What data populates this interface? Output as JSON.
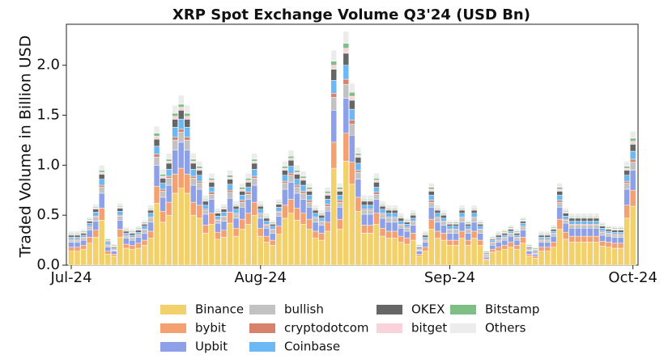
{
  "chart_data": {
    "type": "stacked_bar",
    "title": "XRP Spot Exchange Volume Q3'24 (USD Bn)",
    "y_label": "Traded Volume in Billion USD",
    "categories": [
      "Jul-24",
      null,
      null,
      null,
      null,
      null,
      null,
      null,
      null,
      null,
      null,
      null,
      null,
      null,
      null,
      null,
      null,
      null,
      null,
      null,
      null,
      null,
      null,
      null,
      null,
      null,
      null,
      null,
      null,
      null,
      null,
      "Aug-24",
      null,
      null,
      null,
      null,
      null,
      null,
      null,
      null,
      null,
      null,
      null,
      null,
      null,
      null,
      null,
      null,
      null,
      null,
      null,
      null,
      null,
      null,
      null,
      null,
      null,
      null,
      null,
      null,
      null,
      null,
      "Sep-24",
      null,
      null,
      null,
      null,
      null,
      null,
      null,
      null,
      null,
      null,
      null,
      null,
      null,
      null,
      null,
      null,
      null,
      null,
      null,
      null,
      null,
      null,
      null,
      null,
      null,
      null,
      null,
      null,
      null,
      "Oct-24"
    ],
    "ylim": [
      0,
      2.41
    ],
    "yticks": [
      {
        "value": 0,
        "label": "0.0"
      },
      0.5,
      {
        "value": 1,
        "label": "1.0"
      },
      1.5,
      {
        "value": 2,
        "label": "2.0"
      }
    ],
    "legend_position": "bottom",
    "series": [
      {
        "name": "Binance",
        "color": "#f2d06b",
        "values": [
          0.14,
          0.14,
          0.16,
          0.22,
          0.28,
          0.45,
          0.11,
          0.09,
          0.28,
          0.17,
          0.16,
          0.17,
          0.2,
          0.27,
          0.62,
          0.43,
          0.5,
          0.72,
          0.77,
          0.72,
          0.5,
          0.47,
          0.32,
          0.41,
          0.26,
          0.28,
          0.42,
          0.29,
          0.36,
          0.41,
          0.5,
          0.29,
          0.23,
          0.2,
          0.31,
          0.47,
          0.52,
          0.45,
          0.41,
          0.36,
          0.27,
          0.25,
          0.34,
          0.97,
          0.36,
          1.04,
          0.81,
          0.54,
          0.32,
          0.32,
          0.41,
          0.29,
          0.27,
          0.27,
          0.23,
          0.21,
          0.25,
          0.09,
          0.14,
          0.36,
          0.27,
          0.25,
          0.2,
          0.2,
          0.27,
          0.2,
          0.27,
          0.2,
          0.05,
          0.13,
          0.14,
          0.16,
          0.18,
          0.16,
          0.22,
          0.09,
          0.07,
          0.14,
          0.14,
          0.18,
          0.36,
          0.26,
          0.23,
          0.23,
          0.23,
          0.23,
          0.23,
          0.19,
          0.18,
          0.17,
          0.17,
          0.47,
          0.59
        ]
      },
      {
        "name": "bybit",
        "color": "#f4a070",
        "values": [
          0.04,
          0.04,
          0.04,
          0.06,
          0.07,
          0.12,
          0.03,
          0.02,
          0.08,
          0.04,
          0.04,
          0.05,
          0.05,
          0.07,
          0.17,
          0.11,
          0.13,
          0.19,
          0.2,
          0.19,
          0.13,
          0.13,
          0.08,
          0.11,
          0.07,
          0.07,
          0.11,
          0.08,
          0.1,
          0.11,
          0.13,
          0.08,
          0.06,
          0.05,
          0.08,
          0.13,
          0.14,
          0.12,
          0.11,
          0.1,
          0.07,
          0.07,
          0.09,
          0.26,
          0.1,
          0.28,
          0.22,
          0.14,
          0.08,
          0.08,
          0.11,
          0.08,
          0.07,
          0.07,
          0.06,
          0.06,
          0.07,
          0.02,
          0.04,
          0.1,
          0.07,
          0.07,
          0.05,
          0.05,
          0.07,
          0.05,
          0.07,
          0.05,
          0.01,
          0.03,
          0.04,
          0.04,
          0.05,
          0.04,
          0.06,
          0.02,
          0.02,
          0.04,
          0.04,
          0.05,
          0.1,
          0.07,
          0.06,
          0.06,
          0.06,
          0.06,
          0.06,
          0.05,
          0.05,
          0.05,
          0.05,
          0.13,
          0.16
        ]
      },
      {
        "name": "Upbit",
        "color": "#8da0e8",
        "values": [
          0.05,
          0.05,
          0.05,
          0.07,
          0.09,
          0.15,
          0.04,
          0.03,
          0.09,
          0.06,
          0.05,
          0.06,
          0.07,
          0.09,
          0.21,
          0.14,
          0.17,
          0.24,
          0.26,
          0.24,
          0.17,
          0.16,
          0.11,
          0.14,
          0.09,
          0.09,
          0.14,
          0.1,
          0.12,
          0.14,
          0.17,
          0.1,
          0.08,
          0.07,
          0.1,
          0.16,
          0.17,
          0.15,
          0.14,
          0.12,
          0.09,
          0.08,
          0.11,
          0.32,
          0.12,
          0.35,
          0.27,
          0.18,
          0.11,
          0.11,
          0.14,
          0.1,
          0.09,
          0.09,
          0.08,
          0.07,
          0.08,
          0.03,
          0.05,
          0.12,
          0.09,
          0.08,
          0.07,
          0.07,
          0.09,
          0.07,
          0.09,
          0.07,
          0.02,
          0.04,
          0.05,
          0.05,
          0.06,
          0.05,
          0.07,
          0.03,
          0.02,
          0.05,
          0.05,
          0.06,
          0.12,
          0.09,
          0.08,
          0.08,
          0.08,
          0.08,
          0.08,
          0.06,
          0.06,
          0.06,
          0.06,
          0.16,
          0.2
        ]
      },
      {
        "name": "bullish",
        "color": "#c2c2c2",
        "values": [
          0.02,
          0.02,
          0.02,
          0.03,
          0.04,
          0.06,
          0.02,
          0.01,
          0.04,
          0.02,
          0.02,
          0.02,
          0.03,
          0.04,
          0.08,
          0.06,
          0.07,
          0.1,
          0.1,
          0.1,
          0.07,
          0.06,
          0.04,
          0.05,
          0.03,
          0.04,
          0.06,
          0.04,
          0.05,
          0.05,
          0.07,
          0.04,
          0.03,
          0.03,
          0.04,
          0.06,
          0.07,
          0.06,
          0.06,
          0.05,
          0.04,
          0.03,
          0.05,
          0.13,
          0.05,
          0.14,
          0.11,
          0.07,
          0.04,
          0.04,
          0.05,
          0.04,
          0.04,
          0.04,
          0.03,
          0.03,
          0.03,
          0.01,
          0.02,
          0.05,
          0.04,
          0.03,
          0.03,
          0.03,
          0.04,
          0.03,
          0.04,
          0.03,
          0.01,
          0.02,
          0.02,
          0.02,
          0.02,
          0.02,
          0.03,
          0.01,
          0.01,
          0.02,
          0.02,
          0.02,
          0.05,
          0.03,
          0.03,
          0.03,
          0.03,
          0.03,
          0.03,
          0.03,
          0.02,
          0.02,
          0.02,
          0.06,
          0.08
        ]
      },
      {
        "name": "cryptodotcom",
        "color": "#d9826b",
        "values": [
          0.01,
          0.01,
          0.01,
          0.01,
          0.01,
          0.02,
          0.01,
          0.01,
          0.01,
          0.01,
          0.01,
          0.01,
          0.01,
          0.01,
          0.03,
          0.02,
          0.02,
          0.03,
          0.03,
          0.03,
          0.02,
          0.02,
          0.01,
          0.02,
          0.01,
          0.01,
          0.02,
          0.01,
          0.02,
          0.02,
          0.02,
          0.01,
          0.01,
          0.01,
          0.01,
          0.02,
          0.02,
          0.02,
          0.02,
          0.02,
          0.01,
          0.01,
          0.02,
          0.04,
          0.02,
          0.05,
          0.04,
          0.02,
          0.01,
          0.01,
          0.02,
          0.01,
          0.01,
          0.01,
          0.01,
          0.01,
          0.01,
          0.01,
          0.01,
          0.02,
          0.01,
          0.01,
          0.01,
          0.01,
          0.01,
          0.01,
          0.01,
          0.01,
          0.01,
          0.01,
          0.01,
          0.01,
          0.01,
          0.01,
          0.01,
          0.01,
          0.01,
          0.01,
          0.01,
          0.01,
          0.02,
          0.01,
          0.01,
          0.01,
          0.01,
          0.01,
          0.01,
          0.01,
          0.01,
          0.01,
          0.01,
          0.02,
          0.03
        ]
      },
      {
        "name": "Coinbase",
        "color": "#6cb8f5",
        "values": [
          0.02,
          0.02,
          0.02,
          0.03,
          0.04,
          0.06,
          0.02,
          0.01,
          0.04,
          0.02,
          0.02,
          0.02,
          0.03,
          0.04,
          0.08,
          0.06,
          0.07,
          0.1,
          0.1,
          0.1,
          0.07,
          0.06,
          0.04,
          0.05,
          0.03,
          0.04,
          0.06,
          0.04,
          0.05,
          0.05,
          0.07,
          0.04,
          0.03,
          0.03,
          0.04,
          0.06,
          0.07,
          0.06,
          0.06,
          0.05,
          0.04,
          0.03,
          0.05,
          0.13,
          0.05,
          0.14,
          0.11,
          0.07,
          0.04,
          0.04,
          0.05,
          0.04,
          0.04,
          0.04,
          0.03,
          0.03,
          0.03,
          0.01,
          0.02,
          0.05,
          0.04,
          0.03,
          0.03,
          0.03,
          0.04,
          0.03,
          0.04,
          0.03,
          0.01,
          0.02,
          0.02,
          0.02,
          0.02,
          0.02,
          0.03,
          0.01,
          0.01,
          0.02,
          0.02,
          0.02,
          0.05,
          0.03,
          0.03,
          0.03,
          0.03,
          0.03,
          0.03,
          0.03,
          0.02,
          0.02,
          0.02,
          0.06,
          0.08
        ]
      },
      {
        "name": "OKEX",
        "color": "#666666",
        "values": [
          0.02,
          0.02,
          0.02,
          0.02,
          0.03,
          0.05,
          0.01,
          0.01,
          0.03,
          0.02,
          0.02,
          0.02,
          0.02,
          0.03,
          0.07,
          0.05,
          0.06,
          0.08,
          0.09,
          0.08,
          0.06,
          0.05,
          0.04,
          0.05,
          0.03,
          0.03,
          0.05,
          0.03,
          0.04,
          0.05,
          0.06,
          0.03,
          0.03,
          0.02,
          0.03,
          0.05,
          0.06,
          0.05,
          0.05,
          0.04,
          0.03,
          0.03,
          0.04,
          0.11,
          0.04,
          0.12,
          0.09,
          0.06,
          0.04,
          0.04,
          0.05,
          0.03,
          0.03,
          0.03,
          0.03,
          0.02,
          0.03,
          0.01,
          0.02,
          0.04,
          0.03,
          0.03,
          0.02,
          0.02,
          0.03,
          0.02,
          0.03,
          0.02,
          0.01,
          0.01,
          0.02,
          0.02,
          0.02,
          0.02,
          0.02,
          0.01,
          0.01,
          0.02,
          0.02,
          0.02,
          0.04,
          0.03,
          0.03,
          0.03,
          0.03,
          0.03,
          0.03,
          0.02,
          0.02,
          0.02,
          0.02,
          0.05,
          0.07
        ]
      },
      {
        "name": "bitget",
        "color": "#f8d4da",
        "values": [
          0.01,
          0.01,
          0.01,
          0.01,
          0.01,
          0.02,
          0.01,
          0.01,
          0.01,
          0.01,
          0.01,
          0.01,
          0.01,
          0.01,
          0.03,
          0.02,
          0.02,
          0.03,
          0.03,
          0.03,
          0.02,
          0.02,
          0.01,
          0.02,
          0.01,
          0.01,
          0.02,
          0.01,
          0.02,
          0.02,
          0.02,
          0.01,
          0.01,
          0.01,
          0.01,
          0.02,
          0.02,
          0.02,
          0.02,
          0.02,
          0.01,
          0.01,
          0.02,
          0.04,
          0.02,
          0.05,
          0.04,
          0.02,
          0.01,
          0.01,
          0.02,
          0.01,
          0.01,
          0.01,
          0.01,
          0.01,
          0.01,
          0.01,
          0.01,
          0.02,
          0.01,
          0.01,
          0.01,
          0.01,
          0.01,
          0.01,
          0.01,
          0.01,
          0.01,
          0.01,
          0.01,
          0.01,
          0.01,
          0.01,
          0.01,
          0.01,
          0.01,
          0.01,
          0.01,
          0.01,
          0.02,
          0.01,
          0.01,
          0.01,
          0.01,
          0.01,
          0.01,
          0.01,
          0.01,
          0.01,
          0.01,
          0.02,
          0.03
        ]
      },
      {
        "name": "Bitstamp",
        "color": "#7fbf85",
        "values": [
          0.01,
          0.01,
          0.01,
          0.01,
          0.01,
          0.02,
          0.01,
          0.01,
          0.01,
          0.01,
          0.01,
          0.01,
          0.01,
          0.01,
          0.03,
          0.02,
          0.02,
          0.03,
          0.03,
          0.03,
          0.02,
          0.02,
          0.01,
          0.02,
          0.01,
          0.01,
          0.02,
          0.01,
          0.02,
          0.02,
          0.02,
          0.01,
          0.01,
          0.01,
          0.01,
          0.02,
          0.02,
          0.02,
          0.02,
          0.02,
          0.01,
          0.01,
          0.02,
          0.04,
          0.02,
          0.05,
          0.04,
          0.02,
          0.01,
          0.01,
          0.02,
          0.01,
          0.01,
          0.01,
          0.01,
          0.01,
          0.01,
          0.01,
          0.01,
          0.02,
          0.01,
          0.01,
          0.01,
          0.01,
          0.01,
          0.01,
          0.01,
          0.01,
          0.01,
          0.01,
          0.01,
          0.01,
          0.01,
          0.01,
          0.01,
          0.01,
          0.01,
          0.01,
          0.01,
          0.01,
          0.02,
          0.01,
          0.01,
          0.01,
          0.01,
          0.01,
          0.01,
          0.01,
          0.01,
          0.01,
          0.01,
          0.02,
          0.03
        ]
      },
      {
        "name": "Others",
        "color": "#ececec",
        "values": [
          0.02,
          0.02,
          0.02,
          0.02,
          0.03,
          0.05,
          0.01,
          0.01,
          0.03,
          0.02,
          0.02,
          0.02,
          0.02,
          0.03,
          0.07,
          0.05,
          0.06,
          0.08,
          0.09,
          0.08,
          0.06,
          0.05,
          0.04,
          0.05,
          0.03,
          0.03,
          0.05,
          0.03,
          0.04,
          0.05,
          0.06,
          0.03,
          0.03,
          0.02,
          0.03,
          0.05,
          0.06,
          0.05,
          0.05,
          0.04,
          0.03,
          0.03,
          0.04,
          0.11,
          0.04,
          0.12,
          0.09,
          0.06,
          0.04,
          0.04,
          0.05,
          0.03,
          0.03,
          0.03,
          0.03,
          0.02,
          0.03,
          0.01,
          0.02,
          0.04,
          0.03,
          0.03,
          0.02,
          0.02,
          0.03,
          0.02,
          0.03,
          0.02,
          0.01,
          0.01,
          0.02,
          0.02,
          0.02,
          0.02,
          0.02,
          0.01,
          0.01,
          0.02,
          0.02,
          0.02,
          0.04,
          0.03,
          0.03,
          0.03,
          0.03,
          0.03,
          0.03,
          0.02,
          0.02,
          0.02,
          0.02,
          0.05,
          0.07
        ]
      }
    ]
  }
}
